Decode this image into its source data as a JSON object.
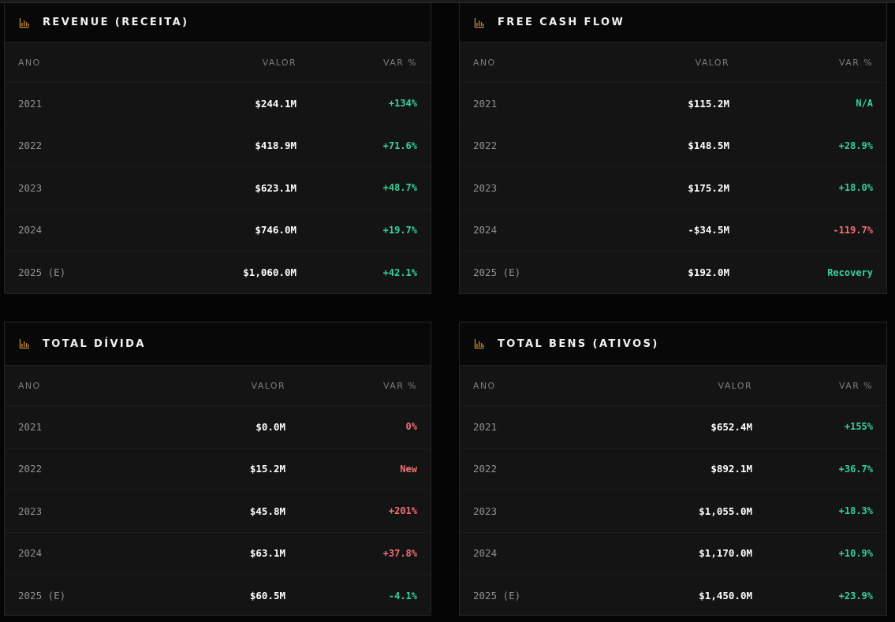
{
  "colors": {
    "positive": "#34d399",
    "negative": "#f27076",
    "icon": "#c98a3c"
  },
  "cards": {
    "revenue": {
      "title": "REVENUE (RECEITA)",
      "icon": "bar-chart-icon",
      "headers": {
        "year": "ANO",
        "value": "VALOR",
        "change": "VAR %"
      },
      "rows": [
        {
          "year": "2021",
          "value": "$244.1M",
          "change": "+134%",
          "trend": "positive"
        },
        {
          "year": "2022",
          "value": "$418.9M",
          "change": "+71.6%",
          "trend": "positive"
        },
        {
          "year": "2023",
          "value": "$623.1M",
          "change": "+48.7%",
          "trend": "positive"
        },
        {
          "year": "2024",
          "value": "$746.0M",
          "change": "+19.7%",
          "trend": "positive"
        },
        {
          "year": "2025 (E)",
          "value": "$1,060.0M",
          "change": "+42.1%",
          "trend": "positive"
        }
      ]
    },
    "fcf": {
      "title": "FREE CASH FLOW",
      "icon": "bar-chart-icon",
      "headers": {
        "year": "ANO",
        "value": "VALOR",
        "change": "VAR %"
      },
      "rows": [
        {
          "year": "2021",
          "value": "$115.2M",
          "change": "N/A",
          "trend": "positive"
        },
        {
          "year": "2022",
          "value": "$148.5M",
          "change": "+28.9%",
          "trend": "positive"
        },
        {
          "year": "2023",
          "value": "$175.2M",
          "change": "+18.0%",
          "trend": "positive"
        },
        {
          "year": "2024",
          "value": "-$34.5M",
          "change": "-119.7%",
          "trend": "negative"
        },
        {
          "year": "2025 (E)",
          "value": "$192.0M",
          "change": "Recovery",
          "trend": "positive"
        }
      ]
    },
    "debt": {
      "title": "TOTAL DÍVIDA",
      "icon": "bar-chart-icon",
      "headers": {
        "year": "ANO",
        "value": "VALOR",
        "change": "VAR %"
      },
      "rows": [
        {
          "year": "2021",
          "value": "$0.0M",
          "change": "0%",
          "trend": "negative"
        },
        {
          "year": "2022",
          "value": "$15.2M",
          "change": "New",
          "trend": "negative"
        },
        {
          "year": "2023",
          "value": "$45.8M",
          "change": "+201%",
          "trend": "negative"
        },
        {
          "year": "2024",
          "value": "$63.1M",
          "change": "+37.8%",
          "trend": "negative"
        },
        {
          "year": "2025 (E)",
          "value": "$60.5M",
          "change": "-4.1%",
          "trend": "positive"
        }
      ]
    },
    "assets": {
      "title": "TOTAL BENS (ATIVOS)",
      "icon": "bar-chart-icon",
      "headers": {
        "year": "ANO",
        "value": "VALOR",
        "change": "VAR %"
      },
      "rows": [
        {
          "year": "2021",
          "value": "$652.4M",
          "change": "+155%",
          "trend": "positive"
        },
        {
          "year": "2022",
          "value": "$892.1M",
          "change": "+36.7%",
          "trend": "positive"
        },
        {
          "year": "2023",
          "value": "$1,055.0M",
          "change": "+18.3%",
          "trend": "positive"
        },
        {
          "year": "2024",
          "value": "$1,170.0M",
          "change": "+10.9%",
          "trend": "positive"
        },
        {
          "year": "2025 (E)",
          "value": "$1,450.0M",
          "change": "+23.9%",
          "trend": "positive"
        }
      ]
    }
  }
}
